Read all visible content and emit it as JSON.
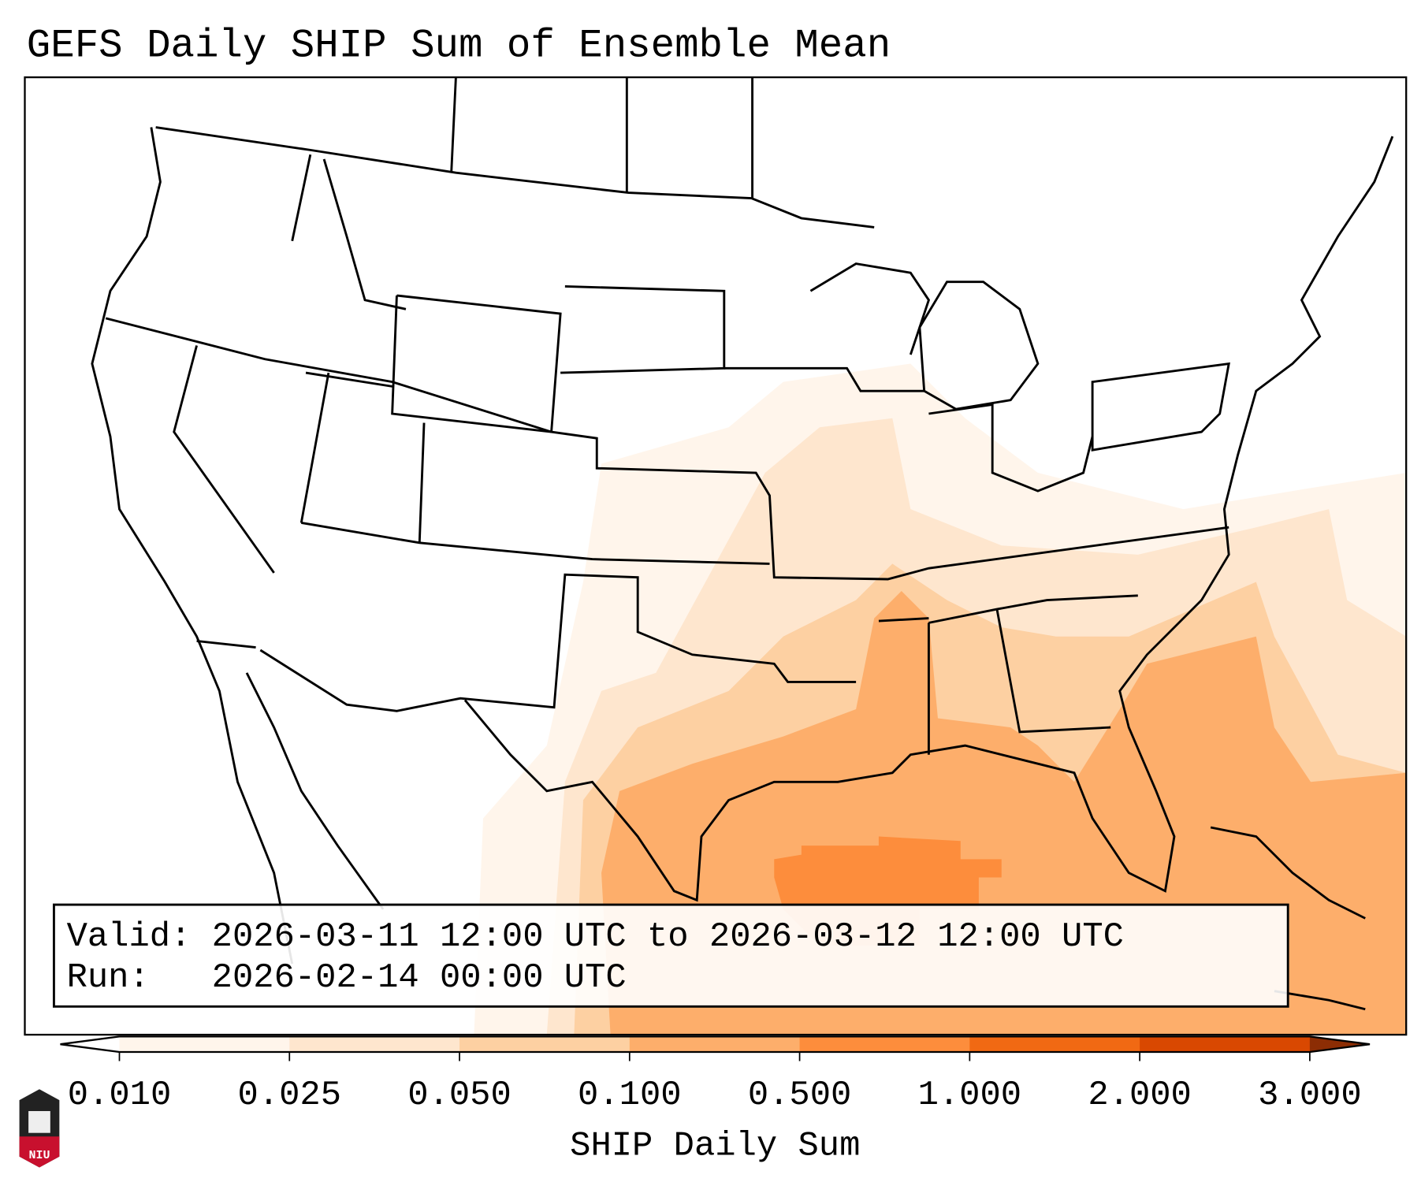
{
  "title": "GEFS Daily SHIP Sum of Ensemble Mean",
  "info": {
    "valid_line": "Valid: 2026-03-11 12:00 UTC to 2026-03-12 12:00 UTC",
    "run_line": "Run:   2026-02-14 00:00 UTC"
  },
  "colorbar": {
    "label": "SHIP Daily Sum",
    "ticks": [
      "0.010",
      "0.025",
      "0.050",
      "0.100",
      "0.500",
      "1.000",
      "2.000",
      "3.000"
    ],
    "colors": [
      "#fff5eb",
      "#fee6ce",
      "#fdd0a2",
      "#fdae6b",
      "#fd8d3c",
      "#f16913",
      "#d94801",
      "#8c2d04"
    ],
    "under_color": "#ffffff"
  },
  "logo": {
    "text": "NIU"
  }
}
